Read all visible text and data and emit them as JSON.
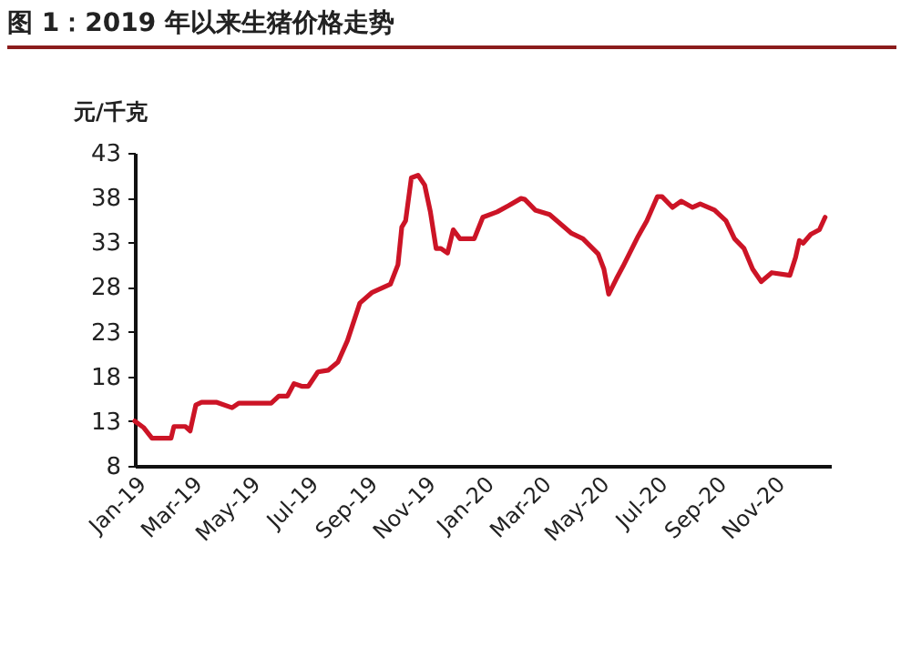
{
  "chart_data": {
    "type": "line",
    "title": "图 1：2019 年以来生猪价格走势",
    "ylabel": "元/千克",
    "x": [
      "2019-01-01",
      "2019-01-10",
      "2019-01-19",
      "2019-02-08",
      "2019-02-11",
      "2019-02-23",
      "2019-02-28",
      "2019-03-06",
      "2019-03-12",
      "2019-03-28",
      "2019-04-13",
      "2019-04-20",
      "2019-05-24",
      "2019-06-01",
      "2019-06-10",
      "2019-06-17",
      "2019-06-25",
      "2019-07-02",
      "2019-07-12",
      "2019-07-23",
      "2019-08-02",
      "2019-08-12",
      "2019-08-25",
      "2019-09-07",
      "2019-09-26",
      "2019-10-04",
      "2019-10-08",
      "2019-10-12",
      "2019-10-18",
      "2019-10-25",
      "2019-11-01",
      "2019-11-07",
      "2019-11-13",
      "2019-11-18",
      "2019-11-25",
      "2019-12-01",
      "2019-12-08",
      "2019-12-23",
      "2020-01-01",
      "2020-01-16",
      "2020-01-28",
      "2020-02-10",
      "2020-02-14",
      "2020-02-25",
      "2020-03-11",
      "2020-04-03",
      "2020-04-15",
      "2020-05-01",
      "2020-05-07",
      "2020-05-12",
      "2020-05-20",
      "2020-05-27",
      "2020-06-12",
      "2020-06-21",
      "2020-07-02",
      "2020-07-07",
      "2020-07-18",
      "2020-07-27",
      "2020-08-08",
      "2020-08-16",
      "2020-08-31",
      "2020-09-12",
      "2020-09-21",
      "2020-10-01",
      "2020-10-10",
      "2020-10-19",
      "2020-10-30",
      "2020-11-18",
      "2020-11-24",
      "2020-11-28",
      "2020-12-02",
      "2020-12-10",
      "2020-12-19",
      "2020-12-25"
    ],
    "series": [
      {
        "color": "#cc1426",
        "values": [
          13.0,
          12.3,
          11.1,
          11.1,
          12.4,
          12.4,
          11.9,
          14.8,
          15.1,
          15.1,
          14.5,
          15.0,
          15.0,
          15.8,
          15.8,
          17.2,
          16.9,
          16.9,
          18.5,
          18.7,
          19.6,
          22.0,
          26.2,
          27.4,
          28.3,
          30.5,
          34.7,
          35.4,
          40.2,
          40.5,
          39.4,
          36.4,
          32.3,
          32.3,
          31.8,
          34.4,
          33.4,
          33.4,
          35.8,
          36.4,
          37.1,
          37.9,
          37.8,
          36.6,
          36.1,
          34.0,
          33.4,
          31.7,
          30.0,
          27.2,
          28.9,
          30.3,
          33.7,
          35.4,
          38.1,
          38.1,
          36.9,
          37.6,
          36.9,
          37.3,
          36.6,
          35.4,
          33.4,
          32.3,
          30.0,
          28.6,
          29.6,
          29.3,
          31.3,
          33.2,
          32.9,
          33.9,
          34.4,
          35.8
        ]
      }
    ],
    "xlim": [
      "2019-01-01",
      "2020-12-31"
    ],
    "xticks": [
      {
        "value": "2019-01-01",
        "label": "Jan-19"
      },
      {
        "value": "2019-03-01",
        "label": "Mar-19"
      },
      {
        "value": "2019-05-01",
        "label": "May-19"
      },
      {
        "value": "2019-07-01",
        "label": "Jul-19"
      },
      {
        "value": "2019-09-01",
        "label": "Sep-19"
      },
      {
        "value": "2019-11-01",
        "label": "Nov-19"
      },
      {
        "value": "2020-01-01",
        "label": "Jan-20"
      },
      {
        "value": "2020-03-01",
        "label": "Mar-20"
      },
      {
        "value": "2020-05-01",
        "label": "May-20"
      },
      {
        "value": "2020-07-01",
        "label": "Jul-20"
      },
      {
        "value": "2020-09-01",
        "label": "Sep-20"
      },
      {
        "value": "2020-11-01",
        "label": "Nov-20"
      }
    ],
    "ylim": [
      8,
      43
    ],
    "yticks": [
      8,
      13,
      18,
      23,
      28,
      33,
      38,
      43
    ],
    "grid": false
  }
}
